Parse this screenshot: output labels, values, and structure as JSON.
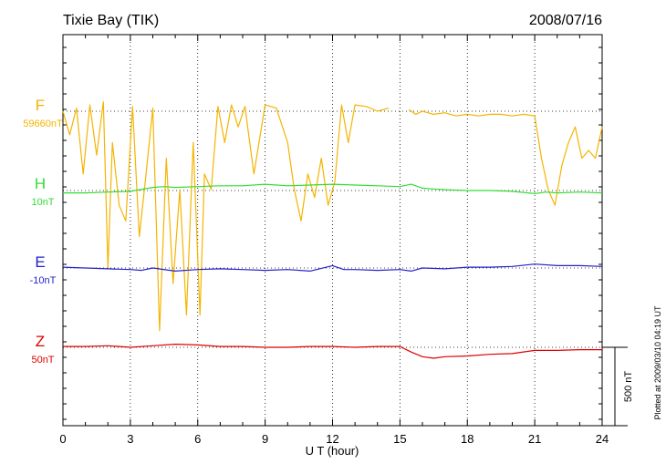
{
  "header": {
    "station": "Tixie Bay (TIK)",
    "date": "2008/07/16"
  },
  "footer": {
    "plotted_note": "Plotted at 2009/03/10 04:19 UT"
  },
  "chart_data": {
    "type": "line",
    "title": "Tixie Bay (TIK)",
    "subtitle": "2008/07/16",
    "xlabel": "U T (hour)",
    "xlim": [
      0,
      24
    ],
    "x_ticks": [
      "0",
      "3",
      "6",
      "9",
      "12",
      "15",
      "18",
      "21",
      "24"
    ],
    "scale_bar_label": "500 nT",
    "scale_bar_nT": 500,
    "grid": true,
    "series": [
      {
        "name": "F",
        "baseline_label": "59660nT",
        "color": "#f5b400",
        "x": [
          0,
          0.3,
          0.6,
          0.9,
          1.2,
          1.5,
          1.8,
          2.0,
          2.2,
          2.5,
          2.8,
          3.1,
          3.4,
          3.7,
          4.0,
          4.3,
          4.6,
          4.9,
          5.2,
          5.5,
          5.8,
          6.1,
          6.3,
          6.6,
          6.9,
          7.2,
          7.5,
          7.8,
          8.1,
          8.5,
          9.0,
          9.5,
          10.0,
          10.3,
          10.6,
          10.9,
          11.2,
          11.5,
          11.8,
          12.1,
          12.4,
          12.7,
          13.0,
          13.5,
          14.0,
          14.5,
          15.0,
          15.4,
          15.7,
          16.0,
          16.5,
          17.0,
          17.5,
          18.0,
          18.5,
          19.0,
          19.5,
          20.0,
          20.5,
          21.0,
          21.3,
          21.6,
          21.9,
          22.2,
          22.5,
          22.8,
          23.1,
          23.4,
          23.7,
          24.0
        ],
        "y": [
          0,
          -150,
          20,
          -400,
          40,
          -280,
          60,
          -1000,
          -200,
          -600,
          -700,
          30,
          -800,
          -400,
          20,
          -1400,
          -300,
          -1100,
          -500,
          -1300,
          -200,
          -1300,
          -400,
          -500,
          30,
          -200,
          40,
          -100,
          30,
          -400,
          40,
          20,
          -200,
          -500,
          -700,
          -400,
          -550,
          -300,
          -600,
          -450,
          40,
          -200,
          40,
          30,
          0,
          20,
          null,
          10,
          -20,
          0,
          -20,
          -10,
          -30,
          -20,
          -30,
          -20,
          -20,
          -30,
          -20,
          -30,
          -300,
          -500,
          -600,
          -350,
          -200,
          -100,
          -300,
          -250,
          -300,
          -100
        ]
      },
      {
        "name": "H",
        "baseline_label": "10nT",
        "color": "#33dd33",
        "x": [
          0,
          1,
          2,
          3,
          4,
          4.5,
          5,
          6,
          7,
          8,
          9,
          10,
          11,
          12,
          13,
          14,
          15,
          15.5,
          16,
          16.5,
          17,
          18,
          19,
          20,
          21,
          21.5,
          22,
          23,
          24
        ],
        "y": [
          -15,
          -15,
          -10,
          -5,
          20,
          25,
          20,
          25,
          30,
          30,
          40,
          30,
          35,
          40,
          35,
          30,
          25,
          40,
          15,
          10,
          5,
          0,
          0,
          -5,
          -20,
          -10,
          -15,
          -10,
          -15
        ]
      },
      {
        "name": "E",
        "baseline_label": "-10nT",
        "color": "#2222cc",
        "x": [
          0,
          1,
          2,
          3,
          3.5,
          4,
          5,
          6,
          7,
          8,
          9,
          10,
          11,
          12,
          12.5,
          13,
          14,
          15,
          15.5,
          16,
          17,
          18,
          19,
          20,
          21,
          22,
          23,
          24
        ],
        "y": [
          5,
          0,
          -5,
          -10,
          -15,
          0,
          -20,
          -10,
          -5,
          -10,
          -15,
          -10,
          -20,
          15,
          -10,
          -10,
          -15,
          -10,
          -20,
          0,
          -5,
          5,
          5,
          10,
          25,
          15,
          15,
          10
        ]
      },
      {
        "name": "Z",
        "baseline_label": "50nT",
        "color": "#dd0000",
        "x": [
          0,
          1,
          2,
          3,
          4,
          5,
          6,
          7,
          8,
          9,
          10,
          11,
          12,
          13,
          14,
          15,
          15.5,
          16,
          16.5,
          17,
          18,
          19,
          20,
          21,
          22,
          23,
          24
        ],
        "y": [
          5,
          5,
          10,
          0,
          10,
          20,
          15,
          5,
          5,
          0,
          0,
          5,
          5,
          0,
          5,
          5,
          -30,
          -60,
          -70,
          -60,
          -55,
          -45,
          -40,
          -20,
          -20,
          -15,
          -15
        ]
      }
    ]
  }
}
